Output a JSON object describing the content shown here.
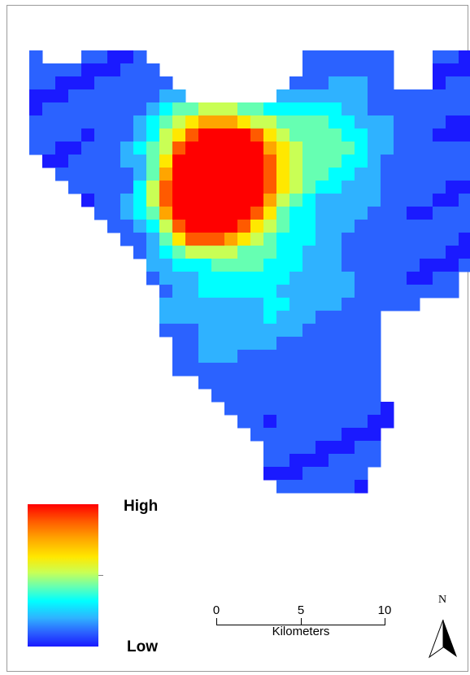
{
  "map": {
    "colors": {
      "ramp": [
        "#1a1aff",
        "#2b62ff",
        "#2fb2ff",
        "#00ffff",
        "#66ffb2",
        "#c9ff55",
        "#ffe800",
        "#ffa500",
        "#ff5a00",
        "#ff0000"
      ],
      "frame": "#9a9a9a",
      "background": "#ffffff"
    }
  },
  "legend": {
    "high_label": "High",
    "low_label": "Low"
  },
  "scale_bar": {
    "ticks": [
      "0",
      "5",
      "10"
    ],
    "units": "Kilometers"
  },
  "north_arrow": {
    "letter": "N",
    "icon": "north-arrow-icon"
  }
}
